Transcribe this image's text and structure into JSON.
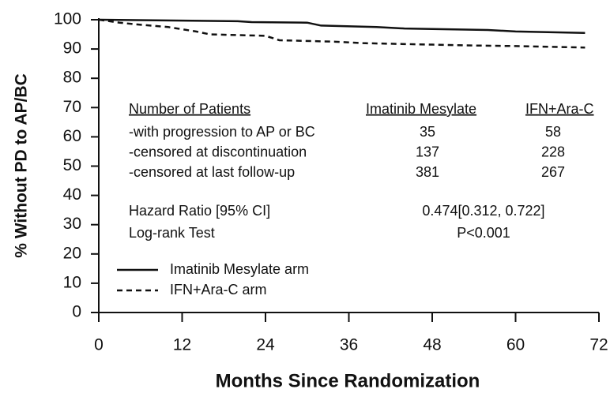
{
  "chart_data": {
    "type": "line",
    "xlabel": "Months Since Randomization",
    "ylabel": "% Without PD to AP/BC",
    "xlim": [
      0,
      72
    ],
    "xticks": [
      0,
      12,
      24,
      36,
      48,
      60,
      72
    ],
    "ylim": [
      0,
      100
    ],
    "yticks": [
      0,
      10,
      20,
      30,
      40,
      50,
      60,
      70,
      80,
      90,
      100
    ],
    "legend_position": "lower left",
    "series": [
      {
        "name": "Imatinib Mesylate arm",
        "color": "#111111",
        "dashed": false,
        "x": [
          0,
          20,
          22,
          30,
          32,
          40,
          44,
          56,
          60,
          70
        ],
        "values": [
          100,
          99.5,
          99.2,
          99,
          98,
          97.5,
          97,
          96.5,
          96,
          95.5
        ]
      },
      {
        "name": "IFN+Ara-C arm",
        "color": "#111111",
        "dashed": true,
        "x": [
          0,
          3,
          5,
          10,
          14,
          16,
          24,
          26,
          34,
          38,
          48,
          54,
          60,
          70
        ],
        "values": [
          100,
          99,
          98.5,
          97.5,
          96,
          95,
          94.5,
          93,
          92.5,
          92,
          91.5,
          91.2,
          91,
          90.5
        ]
      }
    ],
    "table": {
      "header": [
        "Number of Patients",
        "Imatinib Mesylate",
        "IFN+Ara-C"
      ],
      "rows": [
        [
          "-with progression to AP or BC",
          "35",
          "58"
        ],
        [
          "-censored at discontinuation",
          "137",
          "228"
        ],
        [
          "-censored at last follow-up",
          "381",
          "267"
        ]
      ],
      "stats": [
        [
          "Hazard Ratio [95% CI]",
          "0.474[0.312, 0.722]"
        ],
        [
          "Log-rank Test",
          "P<0.001"
        ]
      ]
    }
  }
}
